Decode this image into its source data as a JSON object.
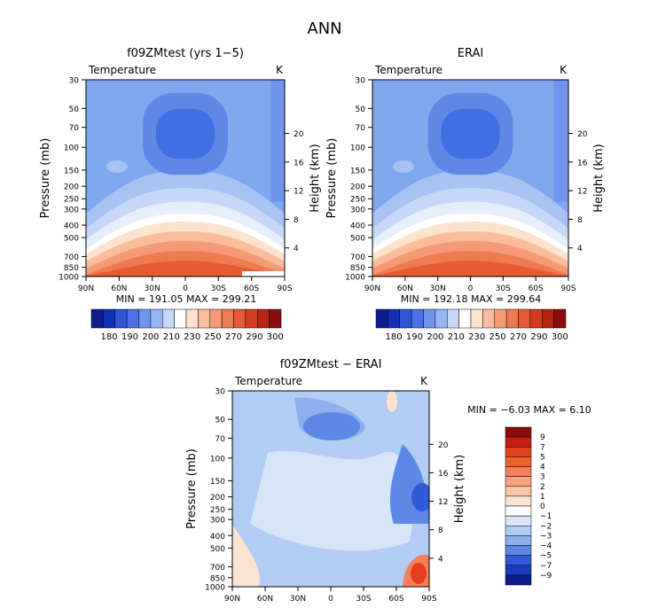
{
  "figure": {
    "title": "ANN",
    "colors": {
      "deep_blue": "#0b1c8c",
      "mid_blue": "#3d6fe0",
      "light_blue": "#7fa7ee",
      "pale_blue": "#cfe0f6",
      "white": "#ffffff",
      "pale_orange": "#fcd9bd",
      "orange": "#f79c70",
      "red": "#e8502a",
      "dark_red": "#8c0b0b"
    }
  },
  "chart_data": [
    {
      "type": "contour",
      "title": "f09ZMtest (yrs 1−5)",
      "left_label": "Temperature",
      "right_label": "K",
      "ylabel": "Pressure (mb)",
      "y2label": "Height (km)",
      "x_ticks": [
        "90N",
        "60N",
        "30N",
        "0",
        "30S",
        "60S",
        "90S"
      ],
      "y_ticks": [
        "30",
        "50",
        "70",
        "100",
        "150",
        "200",
        "250",
        "300",
        "400",
        "500",
        "700",
        "850",
        "1000"
      ],
      "y2_ticks": [
        "20",
        "16",
        "12",
        "8",
        "4"
      ],
      "min_max": "MIN = 191.05   MAX = 299.21",
      "colorbar_labels": [
        "180",
        "190",
        "200",
        "210",
        "230",
        "250",
        "270",
        "290",
        "300"
      ],
      "colorbar_colors": [
        "#0b1c8c",
        "#1030b8",
        "#2f55d8",
        "#4a72e6",
        "#6f95ee",
        "#97b6f3",
        "#c6d8f8",
        "#ffffff",
        "#fde2cc",
        "#f9bd9d",
        "#f59a74",
        "#ee7a52",
        "#e65a34",
        "#d63c1e",
        "#b82412",
        "#8c0b0b"
      ]
    },
    {
      "type": "contour",
      "title": "ERAI",
      "left_label": "Temperature",
      "right_label": "K",
      "ylabel": "Pressure (mb)",
      "y2label": "Height (km)",
      "x_ticks": [
        "90N",
        "60N",
        "30N",
        "0",
        "30S",
        "60S",
        "90S"
      ],
      "y_ticks": [
        "30",
        "50",
        "70",
        "100",
        "150",
        "200",
        "250",
        "300",
        "400",
        "500",
        "700",
        "850",
        "1000"
      ],
      "y2_ticks": [
        "20",
        "16",
        "12",
        "8",
        "4"
      ],
      "min_max": "MIN = 192.18   MAX = 299.64",
      "colorbar_labels": [
        "180",
        "190",
        "200",
        "210",
        "230",
        "250",
        "270",
        "290",
        "300"
      ]
    },
    {
      "type": "contour",
      "title": "f09ZMtest − ERAI",
      "left_label": "Temperature",
      "right_label": "K",
      "ylabel": "Pressure (mb)",
      "y2label": "Height (km)",
      "x_ticks": [
        "90N",
        "60N",
        "30N",
        "0",
        "30S",
        "60S",
        "90S"
      ],
      "y_ticks": [
        "30",
        "50",
        "70",
        "100",
        "150",
        "200",
        "250",
        "300",
        "400",
        "500",
        "700",
        "850",
        "1000"
      ],
      "y2_ticks": [
        "20",
        "16",
        "12",
        "8",
        "4"
      ],
      "min_max": "MIN =   −6.03   MAX =    6.10",
      "colorbar_labels": [
        "9",
        "7",
        "5",
        "4",
        "3",
        "2",
        "1",
        "0",
        "−1",
        "−2",
        "−3",
        "−4",
        "−5",
        "−7",
        "−9"
      ],
      "colorbar_colors": [
        "#8c0b0b",
        "#c41f10",
        "#e2401e",
        "#f0602e",
        "#f5805a",
        "#f8a27e",
        "#fbc4a6",
        "#fde4d2",
        "#ffffff",
        "#d6e5f8",
        "#b3ccf3",
        "#8dafee",
        "#5e88e6",
        "#2f5bd8",
        "#1a3bbf",
        "#0b1c8c"
      ]
    }
  ]
}
